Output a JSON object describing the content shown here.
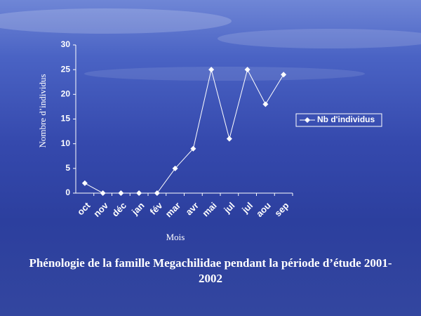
{
  "chart_data": {
    "type": "line",
    "title": "Phénologie de la famille Megachilidae pendant la période d’étude 2001-2002",
    "xlabel": "Mois",
    "ylabel": "Nombre d’individus",
    "categories": [
      "oct",
      "nov",
      "déc",
      "jan",
      "fév",
      "mar",
      "avr",
      "mai",
      "jul",
      "jul",
      "aou",
      "sep"
    ],
    "series": [
      {
        "name": "Nb d'individus",
        "color": "#ffffff",
        "values": [
          2,
          0,
          0,
          0,
          0,
          5,
          9,
          25,
          11,
          25,
          18,
          24
        ]
      }
    ],
    "ylim": [
      0,
      30
    ],
    "yticks": [
      0,
      5,
      10,
      15,
      20,
      25,
      30
    ],
    "legend": "right"
  }
}
